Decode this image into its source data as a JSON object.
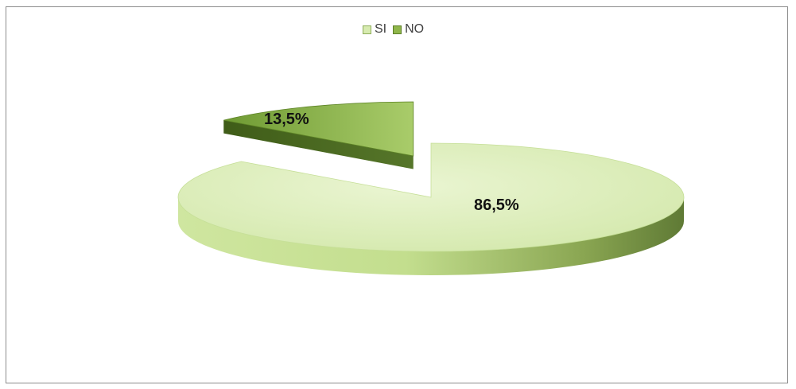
{
  "chart_data": {
    "type": "pie",
    "categories": [
      "SI",
      "NO"
    ],
    "values": [
      86.5,
      13.5
    ],
    "data_labels": [
      "86,5%",
      "13,5%"
    ],
    "legend_placement": "top",
    "colors": {
      "SI": "#d7ebb0",
      "NO": "#8fb64a"
    }
  }
}
